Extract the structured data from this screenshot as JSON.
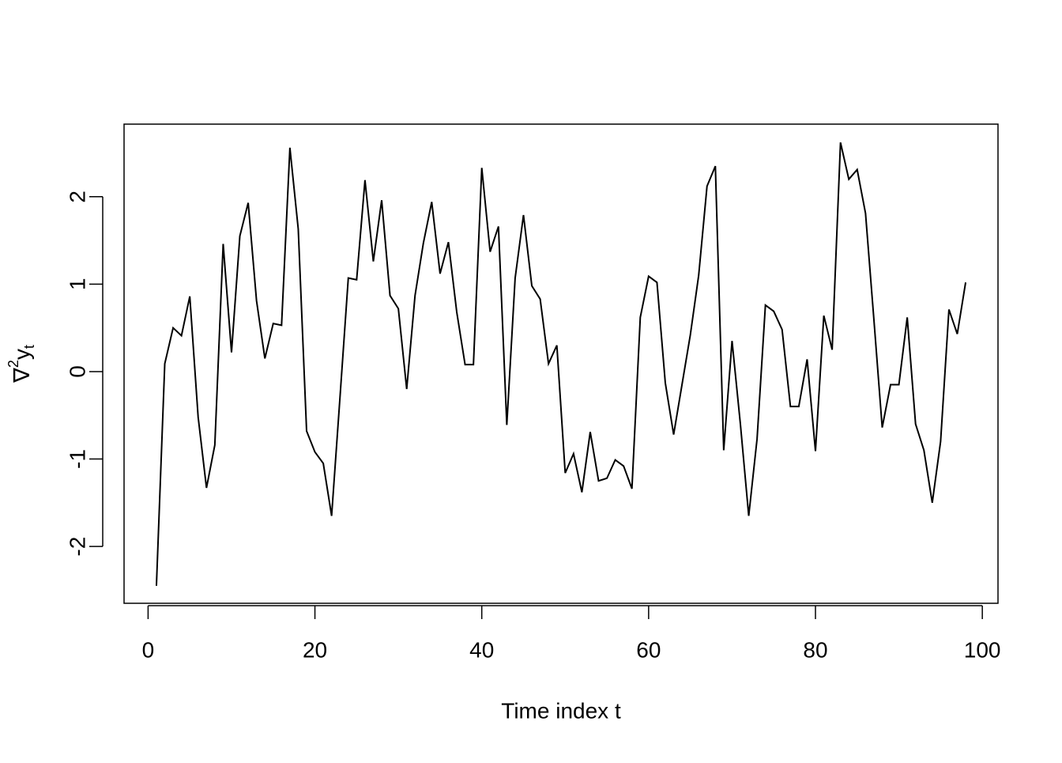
{
  "chart_data": {
    "type": "line",
    "xlabel": "Time index t",
    "ylabel": {
      "symbol": "∇",
      "sup": "2",
      "base": "y",
      "sub": "t"
    },
    "x": [
      1,
      2,
      3,
      4,
      5,
      6,
      7,
      8,
      9,
      10,
      11,
      12,
      13,
      14,
      15,
      16,
      17,
      18,
      19,
      20,
      21,
      22,
      23,
      24,
      25,
      26,
      27,
      28,
      29,
      30,
      31,
      32,
      33,
      34,
      35,
      36,
      37,
      38,
      39,
      40,
      41,
      42,
      43,
      44,
      45,
      46,
      47,
      48,
      49,
      50,
      51,
      52,
      53,
      54,
      55,
      56,
      57,
      58,
      59,
      60,
      61,
      62,
      63,
      64,
      65,
      66,
      67,
      68,
      69,
      70,
      71,
      72,
      73,
      74,
      75,
      76,
      77,
      78,
      79,
      80,
      81,
      82,
      83,
      84,
      85,
      86,
      87,
      88,
      89,
      90,
      91,
      92,
      93,
      94,
      95,
      96,
      97,
      98
    ],
    "series": [
      {
        "color": "#000000",
        "values": [
          -2.45,
          0.09,
          0.5,
          0.41,
          0.86,
          -0.52,
          -1.33,
          -0.84,
          1.46,
          0.22,
          1.55,
          1.93,
          0.81,
          0.15,
          0.55,
          0.53,
          2.56,
          1.63,
          -0.68,
          -0.92,
          -1.05,
          -1.65,
          -0.3,
          1.07,
          1.05,
          2.19,
          1.26,
          1.96,
          0.87,
          0.72,
          -0.2,
          0.87,
          1.47,
          1.94,
          1.12,
          1.48,
          0.68,
          0.08,
          0.08,
          2.33,
          1.37,
          1.66,
          -0.61,
          1.07,
          1.79,
          0.98,
          0.83,
          0.09,
          0.3,
          -1.16,
          -0.94,
          -1.38,
          -0.69,
          -1.25,
          -1.22,
          -1.01,
          -1.08,
          -1.34,
          0.62,
          1.09,
          1.02,
          -0.13,
          -0.72,
          -0.15,
          0.42,
          1.1,
          2.12,
          2.35,
          -0.9,
          0.35,
          -0.6,
          -1.65,
          -0.77,
          0.76,
          0.69,
          0.48,
          -0.4,
          -0.4,
          0.14,
          -0.91,
          0.64,
          0.25,
          2.62,
          2.2,
          2.31,
          1.81,
          0.6,
          -0.64,
          -0.15,
          -0.15,
          0.62,
          -0.6,
          -0.9,
          -1.5,
          -0.8,
          0.71,
          0.43,
          1.02
        ]
      }
    ],
    "xlim": [
      -2.88,
      101.88
    ],
    "ylim": [
      -2.65,
      2.83
    ],
    "xticks": [
      0,
      20,
      40,
      60,
      80,
      100
    ],
    "yticks": [
      -2,
      -1,
      0,
      1,
      2
    ]
  }
}
